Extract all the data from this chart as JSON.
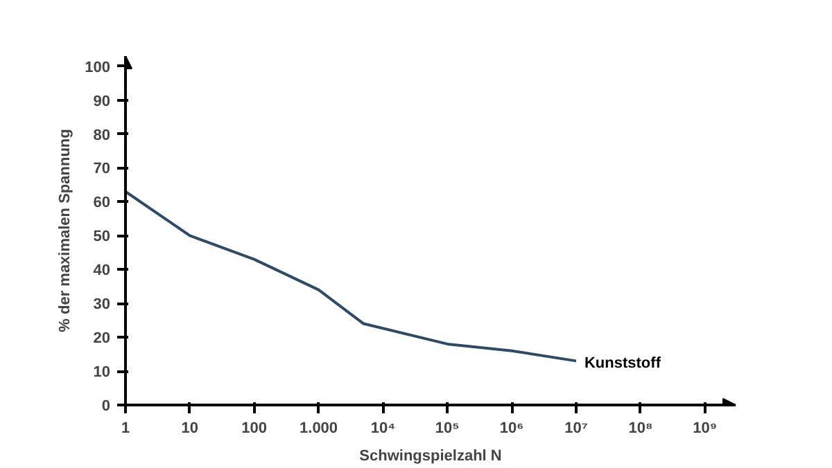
{
  "chart_data": {
    "type": "line",
    "xlabel": "Schwingspielzahl N",
    "ylabel": "% der maximalen Spannung",
    "log": "x",
    "grid": false,
    "marker": "none",
    "line_style": "solid",
    "xlim": [
      1,
      3000000000
    ],
    "ylim": [
      0,
      103
    ],
    "xticks": [
      1,
      10,
      100,
      {
        "value": 1000,
        "label": "1.000"
      },
      {
        "value": 10000,
        "label": "10⁴"
      },
      {
        "value": 100000,
        "label": "10⁵"
      },
      {
        "value": 1000000,
        "label": "10⁶"
      },
      {
        "value": 10000000,
        "label": "10⁷"
      },
      {
        "value": 100000000,
        "label": "10⁸"
      },
      {
        "value": 1000000000,
        "label": "10⁹"
      }
    ],
    "yticks": [
      0,
      10,
      20,
      30,
      40,
      50,
      60,
      70,
      80,
      90,
      100
    ],
    "series": [
      {
        "name": "Kunststoff",
        "color": "#2e4a66",
        "x": [
          1,
          10,
          100,
          1000,
          5000,
          100000,
          1000000,
          10000000
        ],
        "values": [
          63,
          50,
          43,
          34,
          24,
          18,
          16,
          13
        ]
      }
    ]
  }
}
